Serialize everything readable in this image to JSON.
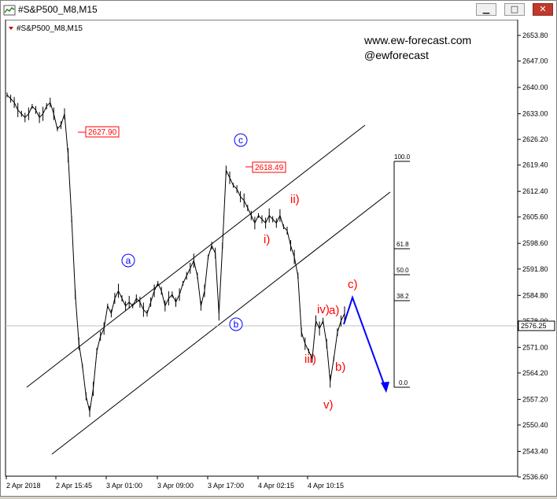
{
  "window": {
    "title": "#S&P500_M8,M15",
    "buttons": [
      "minimize",
      "maximize",
      "close"
    ]
  },
  "chart_data": {
    "type": "line",
    "symbol_label": "#S&P500_M8,M15",
    "watermark_lines": [
      "www.ew-forecast.com",
      "@ewforecast"
    ],
    "y_axis": {
      "ticks": [
        "2653.80",
        "2647.00",
        "2640.00",
        "2633.00",
        "2626.20",
        "2619.40",
        "2612.40",
        "2605.60",
        "2598.60",
        "2591.80",
        "2584.80",
        "2578.00",
        "2571.00",
        "2564.20",
        "2557.20",
        "2550.40",
        "2543.40",
        "2536.60"
      ],
      "range": [
        2536.6,
        2653.8
      ],
      "current_price": "2576.25"
    },
    "x_axis": {
      "ticks": [
        "2 Apr 2018",
        "2 Apr 15:45",
        "3 Apr 01:00",
        "3 Apr 09:00",
        "3 Apr 17:00",
        "4 Apr 02:15",
        "4 Apr 10:15"
      ]
    },
    "price_series": [
      2638,
      2637,
      2636,
      2634,
      2633,
      2632,
      2633,
      2635,
      2634,
      2632,
      2633,
      2635,
      2636,
      2633,
      2629,
      2630,
      2633,
      2622,
      2605,
      2585,
      2572,
      2566,
      2558,
      2554,
      2560,
      2570,
      2574,
      2576,
      2582,
      2580,
      2584,
      2586,
      2584,
      2582,
      2583,
      2582,
      2584,
      2583,
      2581,
      2580,
      2583,
      2586,
      2588,
      2586,
      2582,
      2584,
      2585,
      2583,
      2585,
      2588,
      2590,
      2592,
      2594,
      2590,
      2582,
      2586,
      2595,
      2598,
      2596,
      2580,
      2598,
      2618,
      2616,
      2614,
      2613,
      2611,
      2610,
      2608,
      2606,
      2604,
      2606,
      2605,
      2604,
      2606,
      2605,
      2604,
      2606,
      2603,
      2602,
      2598,
      2595,
      2590,
      2575,
      2572,
      2570,
      2568,
      2578,
      2576,
      2578,
      2572,
      2562,
      2568,
      2575,
      2578,
      2580
    ],
    "price_markers": [
      {
        "label": "2627.90",
        "value": 2627.9
      },
      {
        "label": "2618.49",
        "value": 2618.49
      }
    ],
    "wave_labels_blue": [
      "a",
      "b",
      "c"
    ],
    "wave_labels_red": [
      "i)",
      "ii)",
      "iii)",
      "iv)",
      "v)",
      "a)",
      "b)",
      "c)"
    ],
    "fibonacci_levels": [
      "100.0",
      "61.8",
      "50.0",
      "38.2",
      "0.0"
    ],
    "colors": {
      "price": "#000000",
      "channel": "#000000",
      "blue_labels": "#0000ff",
      "red_labels": "#ff0000",
      "forecast_arrow": "#0000ff",
      "marker_box": "#ff0000"
    }
  }
}
